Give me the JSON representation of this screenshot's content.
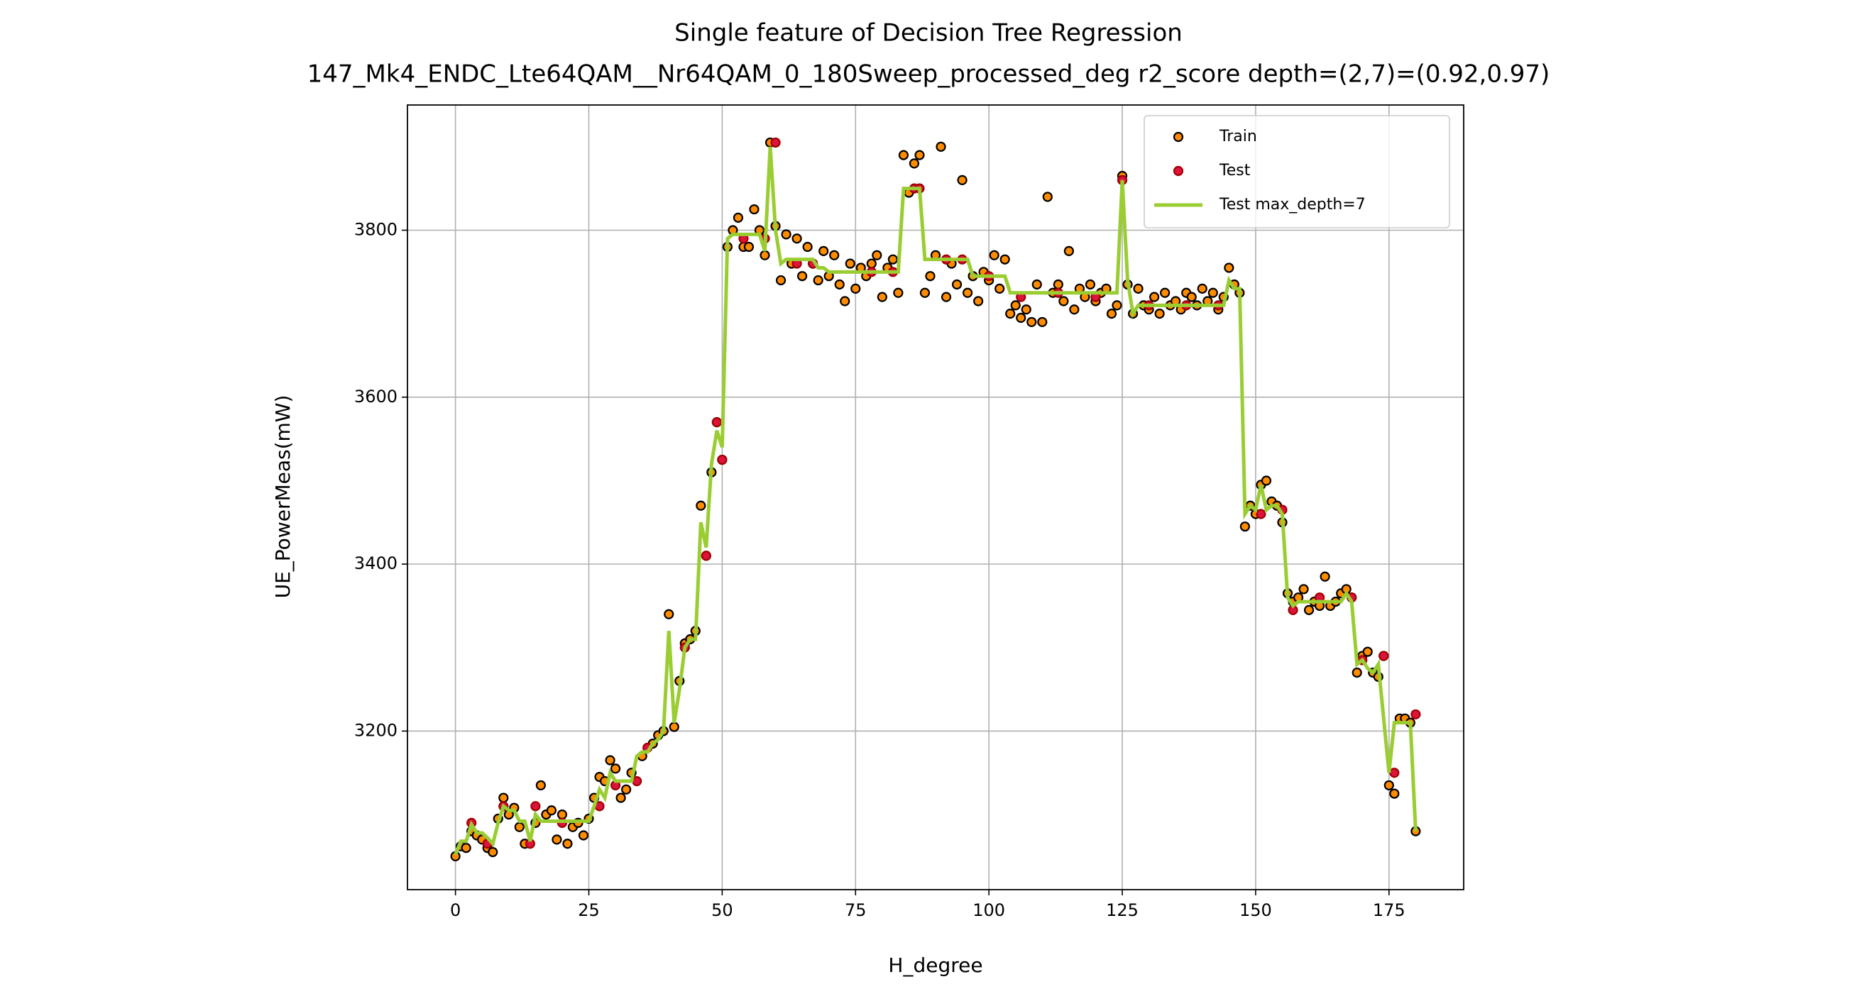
{
  "chart_data": {
    "type": "scatter",
    "title": "Single feature of Decision Tree Regression",
    "subtitle": "147_Mk4_ENDC_Lte64QAM__Nr64QAM_0_180Sweep_processed_deg r2_score depth=(2,7)=(0.92,0.97)",
    "x_label": "H_degree",
    "y_label": "UE_PowerMeas(mW)",
    "xlim": [
      -9,
      189
    ],
    "ylim": [
      3010,
      3950
    ],
    "xticks": [
      0,
      25,
      50,
      75,
      100,
      125,
      150,
      175
    ],
    "yticks": [
      3200,
      3400,
      3600,
      3800
    ],
    "grid": true,
    "legend": "upper right",
    "series": [
      {
        "name": "Train",
        "type": "scatter",
        "color": "#ff8c00",
        "edgecolor": "#000000",
        "x": [
          0,
          1,
          2,
          3,
          4,
          5,
          6,
          7,
          8,
          9,
          10,
          11,
          12,
          13,
          15,
          16,
          17,
          18,
          19,
          20,
          21,
          22,
          23,
          24,
          25,
          26,
          27,
          28,
          29,
          30,
          31,
          32,
          33,
          35,
          37,
          38,
          39,
          40,
          41,
          42,
          43,
          44,
          45,
          46,
          47,
          48,
          49,
          50,
          51,
          52,
          53,
          54,
          55,
          56,
          57,
          58,
          59,
          60,
          61,
          62,
          63,
          64,
          65,
          66,
          67,
          68,
          69,
          70,
          71,
          72,
          73,
          74,
          75,
          76,
          77,
          78,
          79,
          80,
          81,
          82,
          83,
          84,
          85,
          86,
          87,
          88,
          89,
          90,
          91,
          92,
          93,
          94,
          95,
          96,
          97,
          98,
          99,
          100,
          101,
          102,
          103,
          104,
          105,
          106,
          107,
          108,
          109,
          110,
          111,
          112,
          113,
          114,
          115,
          116,
          117,
          118,
          119,
          120,
          121,
          122,
          123,
          124,
          125,
          126,
          127,
          128,
          129,
          130,
          131,
          132,
          133,
          134,
          135,
          136,
          137,
          138,
          139,
          140,
          141,
          142,
          143,
          144,
          145,
          146,
          147,
          148,
          149,
          150,
          151,
          152,
          153,
          154,
          155,
          156,
          157,
          158,
          159,
          160,
          161,
          162,
          163,
          164,
          165,
          166,
          167,
          168,
          169,
          170,
          171,
          172,
          173,
          174,
          175,
          176,
          177,
          178,
          179,
          180
        ],
        "values": [
          3050,
          3062,
          3060,
          3080,
          3075,
          3070,
          3060,
          3055,
          3095,
          3120,
          3100,
          3108,
          3085,
          3065,
          3090,
          3135,
          3100,
          3105,
          3070,
          3100,
          3065,
          3085,
          3090,
          3075,
          3095,
          3120,
          3145,
          3140,
          3165,
          3155,
          3120,
          3130,
          3150,
          3170,
          3185,
          3195,
          3200,
          3340,
          3205,
          3260,
          3305,
          3310,
          3320,
          3470,
          3410,
          3510,
          3570,
          3525,
          3780,
          3800,
          3815,
          3780,
          3780,
          3825,
          3800,
          3770,
          3905,
          3805,
          3740,
          3795,
          3760,
          3790,
          3745,
          3780,
          3760,
          3740,
          3775,
          3745,
          3770,
          3735,
          3715,
          3760,
          3730,
          3755,
          3745,
          3760,
          3770,
          3720,
          3755,
          3765,
          3725,
          3890,
          3845,
          3880,
          3890,
          3725,
          3745,
          3770,
          3900,
          3720,
          3760,
          3735,
          3860,
          3725,
          3745,
          3715,
          3750,
          3740,
          3770,
          3730,
          3765,
          3700,
          3710,
          3695,
          3705,
          3690,
          3735,
          3690,
          3840,
          3725,
          3735,
          3715,
          3775,
          3705,
          3730,
          3720,
          3735,
          3715,
          3725,
          3730,
          3700,
          3710,
          3865,
          3735,
          3700,
          3730,
          3710,
          3705,
          3720,
          3700,
          3725,
          3710,
          3715,
          3705,
          3725,
          3720,
          3710,
          3730,
          3715,
          3725,
          3705,
          3720,
          3755,
          3735,
          3725,
          3445,
          3470,
          3460,
          3495,
          3500,
          3475,
          3470,
          3450,
          3365,
          3355,
          3360,
          3370,
          3345,
          3355,
          3350,
          3385,
          3350,
          3355,
          3365,
          3370,
          3360,
          3270,
          3290,
          3295,
          3270,
          3265,
          3290,
          3135,
          3125,
          3215,
          3215,
          3210,
          3080
        ]
      },
      {
        "name": "Test",
        "type": "scatter",
        "color": "#dc143c",
        "edgecolor": "#a00000",
        "x": [
          3,
          6,
          9,
          14,
          15,
          20,
          27,
          30,
          34,
          36,
          43,
          47,
          49,
          50,
          54,
          58,
          60,
          64,
          67,
          78,
          82,
          86,
          87,
          92,
          95,
          100,
          106,
          113,
          120,
          125,
          130,
          137,
          143,
          151,
          155,
          157,
          162,
          168,
          170,
          174,
          176,
          180
        ],
        "values": [
          3090,
          3065,
          3110,
          3065,
          3110,
          3090,
          3110,
          3135,
          3140,
          3180,
          3300,
          3410,
          3570,
          3525,
          3790,
          3790,
          3905,
          3760,
          3760,
          3750,
          3750,
          3850,
          3850,
          3765,
          3765,
          3745,
          3720,
          3725,
          3720,
          3860,
          3710,
          3710,
          3710,
          3460,
          3465,
          3345,
          3360,
          3360,
          3285,
          3290,
          3150,
          3220
        ]
      },
      {
        "name": "Test max_depth=7",
        "type": "line",
        "color": "#9acd32",
        "x": [
          0,
          1,
          2,
          3,
          4,
          5,
          6,
          7,
          8,
          9,
          10,
          11,
          12,
          13,
          14,
          15,
          16,
          17,
          18,
          19,
          20,
          21,
          22,
          23,
          24,
          25,
          26,
          27,
          28,
          29,
          30,
          31,
          32,
          33,
          34,
          35,
          36,
          37,
          38,
          39,
          40,
          41,
          42,
          43,
          44,
          45,
          46,
          47,
          48,
          49,
          50,
          51,
          52,
          53,
          54,
          55,
          56,
          57,
          58,
          59,
          60,
          61,
          62,
          63,
          64,
          65,
          66,
          67,
          68,
          69,
          70,
          71,
          72,
          73,
          74,
          75,
          76,
          77,
          78,
          79,
          80,
          81,
          82,
          83,
          84,
          85,
          86,
          87,
          88,
          89,
          90,
          91,
          92,
          93,
          94,
          95,
          96,
          97,
          98,
          99,
          100,
          101,
          102,
          103,
          104,
          105,
          106,
          107,
          108,
          109,
          110,
          111,
          112,
          113,
          114,
          115,
          116,
          117,
          118,
          119,
          120,
          121,
          122,
          123,
          124,
          125,
          126,
          127,
          128,
          129,
          130,
          131,
          132,
          133,
          134,
          135,
          136,
          137,
          138,
          139,
          140,
          141,
          142,
          143,
          144,
          145,
          146,
          147,
          148,
          149,
          150,
          151,
          152,
          153,
          154,
          155,
          156,
          157,
          158,
          159,
          160,
          161,
          162,
          163,
          164,
          165,
          166,
          167,
          168,
          169,
          170,
          171,
          172,
          173,
          174,
          175,
          176,
          177,
          178,
          179,
          180
        ],
        "values": [
          3052,
          3068,
          3068,
          3088,
          3078,
          3078,
          3072,
          3065,
          3090,
          3110,
          3105,
          3105,
          3092,
          3092,
          3068,
          3100,
          3092,
          3092,
          3092,
          3092,
          3092,
          3092,
          3092,
          3092,
          3092,
          3092,
          3110,
          3130,
          3120,
          3150,
          3140,
          3140,
          3140,
          3140,
          3170,
          3175,
          3175,
          3185,
          3190,
          3200,
          3320,
          3210,
          3250,
          3300,
          3310,
          3310,
          3450,
          3420,
          3520,
          3560,
          3540,
          3790,
          3795,
          3795,
          3795,
          3795,
          3795,
          3795,
          3775,
          3900,
          3800,
          3760,
          3765,
          3765,
          3765,
          3765,
          3765,
          3765,
          3755,
          3755,
          3750,
          3750,
          3750,
          3750,
          3750,
          3750,
          3750,
          3750,
          3750,
          3750,
          3750,
          3750,
          3750,
          3750,
          3850,
          3850,
          3850,
          3850,
          3765,
          3765,
          3765,
          3765,
          3765,
          3765,
          3765,
          3765,
          3765,
          3745,
          3745,
          3745,
          3745,
          3745,
          3745,
          3745,
          3725,
          3725,
          3725,
          3725,
          3725,
          3725,
          3725,
          3725,
          3725,
          3725,
          3725,
          3725,
          3725,
          3725,
          3725,
          3725,
          3725,
          3725,
          3725,
          3725,
          3725,
          3860,
          3740,
          3700,
          3710,
          3710,
          3710,
          3710,
          3710,
          3710,
          3710,
          3710,
          3710,
          3710,
          3710,
          3710,
          3710,
          3710,
          3710,
          3710,
          3710,
          3740,
          3730,
          3730,
          3460,
          3470,
          3465,
          3495,
          3465,
          3470,
          3470,
          3460,
          3360,
          3350,
          3355,
          3355,
          3355,
          3355,
          3355,
          3355,
          3355,
          3355,
          3355,
          3365,
          3355,
          3280,
          3285,
          3275,
          3270,
          3280,
          3215,
          3150,
          3210,
          3210,
          3210,
          3210,
          3080
        ]
      }
    ]
  }
}
